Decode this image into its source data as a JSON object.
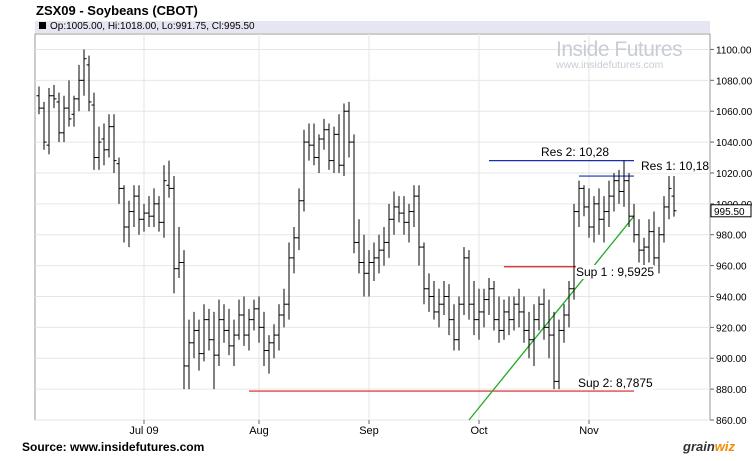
{
  "title": "ZSX09 - Soybeans (CBOT)",
  "ohlc": "Op:1005.00, Hi:1018.00, Lo:991.75, Cl:995.50",
  "watermark": {
    "title": "Inside Futures",
    "url": "www.insidefutures.com"
  },
  "source": "Source: www.insidefutures.com",
  "brand": {
    "main": "grain",
    "accent": "wiz"
  },
  "colors": {
    "resistance": "#1a2fb0",
    "support": "#d42020",
    "trend": "#22aa22",
    "bars": "#000000",
    "grid": "#e6e6e6"
  },
  "chart_data": {
    "type": "ohlc",
    "ylim": [
      860,
      1110
    ],
    "ytick_values": [
      860,
      880,
      900,
      920,
      940,
      960,
      980,
      1000,
      1020,
      1040,
      1060,
      1080,
      1100
    ],
    "yticks": [
      "860.00",
      "880.00",
      "900.00",
      "920.00",
      "940.00",
      "960.00",
      "980.00",
      "1000.00",
      "1020.00",
      "1040.00",
      "1060.00",
      "1080.00",
      "1100.00"
    ],
    "x_index_range": [
      0,
      133
    ],
    "xticks": [
      {
        "label": "Jul 09",
        "index": 21
      },
      {
        "label": "Aug",
        "index": 44
      },
      {
        "label": "Sep",
        "index": 66
      },
      {
        "label": "Oct",
        "index": 88
      },
      {
        "label": "Nov",
        "index": 110
      }
    ],
    "last_price": "995.50",
    "last_price_value": 995.5,
    "levels": [
      {
        "label": "Res 2: 10,28",
        "value": 1028,
        "role": "resistance",
        "x_start": 90,
        "x_end": 119
      },
      {
        "label": "Res 1: 10,18",
        "value": 1018,
        "role": "resistance",
        "x_start": 108,
        "x_end": 119
      },
      {
        "label": "Sup 1 : 9,5925",
        "value": 959.25,
        "role": "support",
        "x_start": 93,
        "x_end": 119
      },
      {
        "label": "Sup 2: 8,7875",
        "value": 878.75,
        "role": "support",
        "x_start": 42,
        "x_end": 119
      }
    ],
    "trendline": {
      "x1": 86,
      "y1": 860,
      "x2": 119,
      "y2": 992
    },
    "bars": [
      [
        1070,
        1076,
        1058,
        1062
      ],
      [
        1062,
        1066,
        1035,
        1040
      ],
      [
        1038,
        1075,
        1032,
        1070
      ],
      [
        1070,
        1077,
        1062,
        1068
      ],
      [
        1066,
        1072,
        1040,
        1046
      ],
      [
        1046,
        1070,
        1040,
        1062
      ],
      [
        1062,
        1080,
        1050,
        1055
      ],
      [
        1058,
        1070,
        1050,
        1068
      ],
      [
        1068,
        1090,
        1060,
        1080
      ],
      [
        1080,
        1100,
        1070,
        1094
      ],
      [
        1090,
        1096,
        1060,
        1066
      ],
      [
        1064,
        1072,
        1022,
        1030
      ],
      [
        1030,
        1050,
        1022,
        1040
      ],
      [
        1042,
        1052,
        1025,
        1035
      ],
      [
        1035,
        1058,
        1030,
        1050
      ],
      [
        1050,
        1058,
        1020,
        1028
      ],
      [
        1026,
        1030,
        1000,
        1010
      ],
      [
        1010,
        1012,
        975,
        985
      ],
      [
        985,
        1002,
        972,
        995
      ],
      [
        995,
        1012,
        985,
        1005
      ],
      [
        1005,
        1012,
        980,
        990
      ],
      [
        990,
        1000,
        982,
        994
      ],
      [
        994,
        1005,
        985,
        992
      ],
      [
        992,
        1010,
        985,
        1000
      ],
      [
        1000,
        1005,
        982,
        988
      ],
      [
        988,
        1025,
        978,
        1015
      ],
      [
        1012,
        1028,
        1004,
        1010
      ],
      [
        1010,
        1018,
        942,
        958
      ],
      [
        958,
        985,
        952,
        962
      ],
      [
        962,
        970,
        880,
        895
      ],
      [
        895,
        925,
        880,
        910
      ],
      [
        910,
        930,
        900,
        918
      ],
      [
        918,
        925,
        892,
        903
      ],
      [
        903,
        935,
        898,
        925
      ],
      [
        925,
        932,
        905,
        912
      ],
      [
        912,
        930,
        880,
        902
      ],
      [
        902,
        938,
        895,
        925
      ],
      [
        925,
        935,
        910,
        918
      ],
      [
        918,
        932,
        902,
        908
      ],
      [
        908,
        925,
        895,
        915
      ],
      [
        915,
        938,
        912,
        928
      ],
      [
        928,
        940,
        908,
        915
      ],
      [
        915,
        932,
        905,
        925
      ],
      [
        925,
        938,
        918,
        932
      ],
      [
        932,
        940,
        910,
        920
      ],
      [
        920,
        930,
        895,
        905
      ],
      [
        905,
        915,
        890,
        910
      ],
      [
        910,
        922,
        900,
        915
      ],
      [
        915,
        935,
        905,
        928
      ],
      [
        928,
        945,
        920,
        935
      ],
      [
        935,
        975,
        925,
        965
      ],
      [
        965,
        985,
        955,
        978
      ],
      [
        978,
        1010,
        970,
        1002
      ],
      [
        1002,
        1048,
        995,
        1040
      ],
      [
        1040,
        1052,
        1028,
        1038
      ],
      [
        1038,
        1052,
        1025,
        1030
      ],
      [
        1030,
        1045,
        1020,
        1042
      ],
      [
        1042,
        1055,
        1035,
        1048
      ],
      [
        1048,
        1052,
        1022,
        1028
      ],
      [
        1028,
        1050,
        1020,
        1045
      ],
      [
        1045,
        1058,
        1020,
        1025
      ],
      [
        1025,
        1065,
        1018,
        1060
      ],
      [
        1060,
        1066,
        1030,
        1040
      ],
      [
        1040,
        1045,
        968,
        975
      ],
      [
        975,
        990,
        955,
        962
      ],
      [
        962,
        980,
        940,
        955
      ],
      [
        955,
        970,
        940,
        962
      ],
      [
        962,
        975,
        950,
        965
      ],
      [
        965,
        980,
        955,
        970
      ],
      [
        970,
        985,
        960,
        975
      ],
      [
        975,
        1000,
        965,
        990
      ],
      [
        990,
        1008,
        980,
        998
      ],
      [
        998,
        1005,
        988,
        994
      ],
      [
        994,
        1005,
        980,
        988
      ],
      [
        988,
        1000,
        975,
        995
      ],
      [
        995,
        1012,
        985,
        1005
      ],
      [
        1005,
        1012,
        960,
        972
      ],
      [
        972,
        975,
        935,
        945
      ],
      [
        945,
        955,
        930,
        940
      ],
      [
        940,
        950,
        925,
        930
      ],
      [
        930,
        945,
        920,
        935
      ],
      [
        935,
        950,
        928,
        940
      ],
      [
        940,
        948,
        915,
        925
      ],
      [
        925,
        935,
        905,
        912
      ],
      [
        912,
        940,
        905,
        935
      ],
      [
        935,
        972,
        928,
        965
      ],
      [
        965,
        970,
        925,
        935
      ],
      [
        935,
        950,
        915,
        925
      ],
      [
        925,
        945,
        912,
        930
      ],
      [
        930,
        945,
        920,
        938
      ],
      [
        938,
        952,
        928,
        945
      ],
      [
        945,
        950,
        918,
        925
      ],
      [
        925,
        940,
        910,
        918
      ],
      [
        918,
        938,
        912,
        930
      ],
      [
        930,
        940,
        915,
        925
      ],
      [
        925,
        940,
        918,
        935
      ],
      [
        935,
        945,
        920,
        930
      ],
      [
        930,
        940,
        910,
        918
      ],
      [
        918,
        930,
        900,
        912
      ],
      [
        912,
        935,
        895,
        925
      ],
      [
        925,
        940,
        918,
        935
      ],
      [
        935,
        945,
        912,
        920
      ],
      [
        920,
        938,
        900,
        915
      ],
      [
        915,
        930,
        880,
        885
      ],
      [
        885,
        925,
        880,
        918
      ],
      [
        918,
        935,
        910,
        928
      ],
      [
        928,
        950,
        920,
        945
      ],
      [
        945,
        1000,
        938,
        995
      ],
      [
        995,
        1015,
        985,
        1010
      ],
      [
        1010,
        1012,
        992,
        998
      ],
      [
        998,
        1010,
        978,
        985
      ],
      [
        985,
        1005,
        975,
        1000
      ],
      [
        1000,
        1010,
        980,
        990
      ],
      [
        990,
        1005,
        975,
        995
      ],
      [
        995,
        1015,
        985,
        1005
      ],
      [
        1005,
        1020,
        995,
        1015
      ],
      [
        1015,
        1022,
        1000,
        1008
      ],
      [
        1008,
        1028,
        998,
        1015
      ],
      [
        1015,
        1020,
        985,
        992
      ],
      [
        992,
        1000,
        975,
        980
      ],
      [
        980,
        990,
        962,
        970
      ],
      [
        970,
        978,
        958,
        972
      ],
      [
        972,
        990,
        962,
        982
      ],
      [
        982,
        995,
        960,
        965
      ],
      [
        965,
        985,
        955,
        980
      ],
      [
        980,
        1005,
        975,
        998
      ],
      [
        998,
        1018,
        990,
        1010
      ],
      [
        1005,
        1018,
        991.75,
        995.5
      ]
    ]
  }
}
